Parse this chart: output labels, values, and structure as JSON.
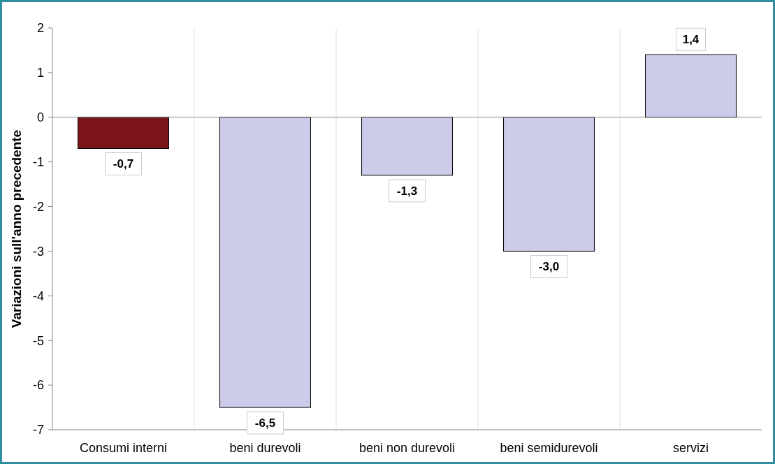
{
  "chart_data": {
    "type": "bar",
    "ylabel": "Variazioni sull'anno precedente",
    "categories": [
      "Consumi interni",
      "beni durevoli",
      "beni non durevoli",
      "beni semidurevoli",
      "servizi"
    ],
    "values": [
      -0.7,
      -6.5,
      -1.3,
      -3.0,
      1.4
    ],
    "colors": [
      "#7a1418",
      "#ccccea",
      "#ccccea",
      "#ccccea",
      "#ccccea"
    ],
    "value_labels": [
      "-0,7",
      "-6,5",
      "-1,3",
      "-3,0",
      "1,4"
    ],
    "ylim": [
      -7,
      2
    ],
    "yticks": [
      -7,
      -6,
      -5,
      -4,
      -3,
      -2,
      -1,
      0,
      1,
      2
    ],
    "grid": "x"
  }
}
